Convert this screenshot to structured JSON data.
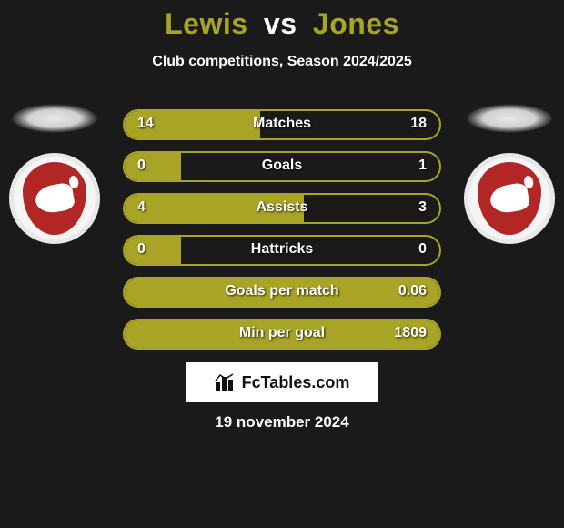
{
  "title": {
    "player1": "Lewis",
    "vs": "vs",
    "player2": "Jones",
    "player1_color": "#a8a425",
    "player2_color": "#a8a425"
  },
  "subtitle": "Club competitions, Season 2024/2025",
  "accent_color": "#a8a425",
  "background_color": "#1a1a1a",
  "text_color": "#ffffff",
  "club_logo_bg": "#b32626",
  "bars": [
    {
      "label": "Matches",
      "left": "14",
      "right": "18",
      "fill_pct": 43
    },
    {
      "label": "Goals",
      "left": "0",
      "right": "1",
      "fill_pct": 18
    },
    {
      "label": "Assists",
      "left": "4",
      "right": "3",
      "fill_pct": 57
    },
    {
      "label": "Hattricks",
      "left": "0",
      "right": "0",
      "fill_pct": 18
    },
    {
      "label": "Goals per match",
      "left": "",
      "right": "0.06",
      "fill_pct": 100
    },
    {
      "label": "Min per goal",
      "left": "",
      "right": "1809",
      "fill_pct": 100
    }
  ],
  "brand": "FcTables.com",
  "date": "19 november 2024"
}
